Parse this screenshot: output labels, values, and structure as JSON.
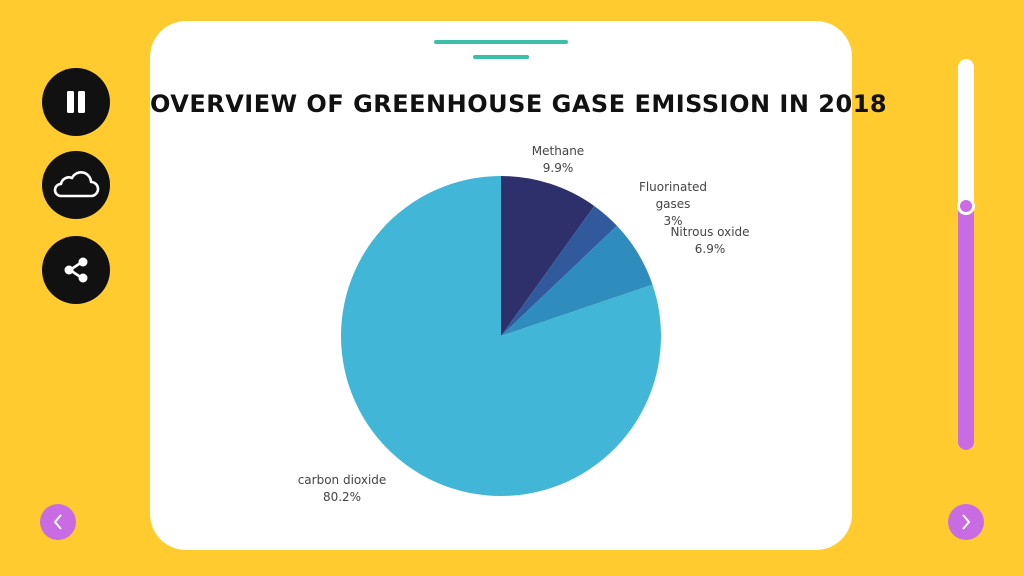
{
  "colors": {
    "background": "#FFCB2F",
    "accent_line": "#3DBEA7",
    "slider_fill": "#C96BE3",
    "nav_button": "#C96BE3",
    "control_button": "#111111"
  },
  "controls": [
    {
      "name": "pause",
      "icon": "pause-icon"
    },
    {
      "name": "cloud",
      "icon": "cloud-icon"
    },
    {
      "name": "share",
      "icon": "share-icon"
    }
  ],
  "slider": {
    "level_fraction": 0.625
  },
  "nav": {
    "prev_icon": "chevron-left-icon",
    "next_icon": "chevron-right-icon"
  },
  "chart_data": {
    "type": "pie",
    "title": "Overview of Greenhouse gase Emission in 2018",
    "slices": [
      {
        "label": "Methane",
        "value": 9.9,
        "value_label": "9.9%",
        "color": "#2E306B"
      },
      {
        "label": "Fluorinated gases",
        "value": 3,
        "value_label": "3%",
        "color": "#305A9B"
      },
      {
        "label": "Nitrous oxide",
        "value": 6.9,
        "value_label": "6.9%",
        "color": "#2F8DBE"
      },
      {
        "label": "carbon dioxide",
        "value": 80.2,
        "value_label": "80.2%",
        "color": "#41B6D6"
      }
    ]
  }
}
